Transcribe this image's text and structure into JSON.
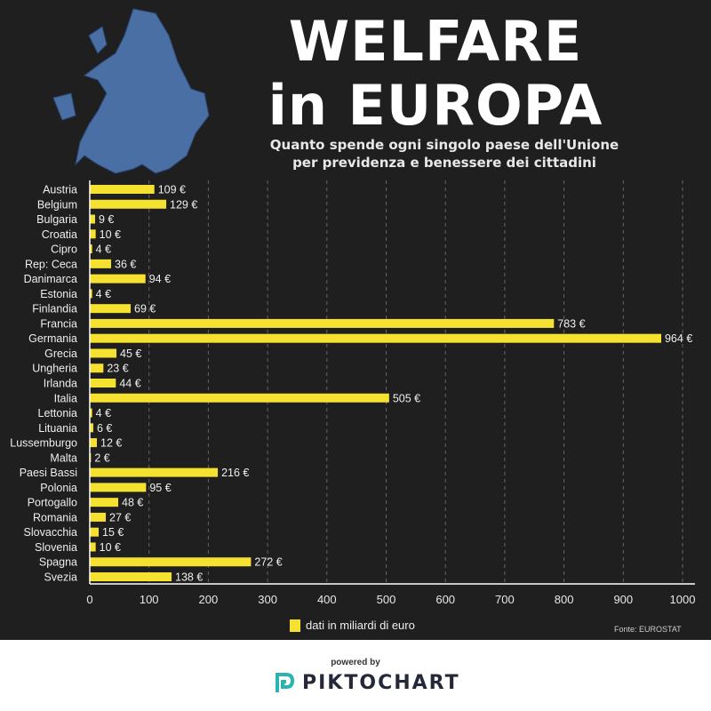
{
  "header": {
    "title_line1": "WELFARE",
    "title_line2": "in EUROPA",
    "subtitle_line1": "Quanto spende ogni singolo paese dell'Unione",
    "subtitle_line2": "per previdenza e benessere dei cittadini"
  },
  "chart_data": {
    "type": "bar",
    "orientation": "horizontal",
    "categories": [
      "Austria",
      "Belgium",
      "Bulgaria",
      "Croatia",
      "Cipro",
      "Rep: Ceca",
      "Danimarca",
      "Estonia",
      "Finlandia",
      "Francia",
      "Germania",
      "Grecia",
      "Ungheria",
      "Irlanda",
      "Italia",
      "Lettonia",
      "Lituania",
      "Lussemburgo",
      "Malta",
      "Paesi Bassi",
      "Polonia",
      "Portogallo",
      "Romania",
      "Slovacchia",
      "Slovenia",
      "Spagna",
      "Svezia"
    ],
    "values": [
      109,
      129,
      9,
      10,
      4,
      36,
      94,
      4,
      69,
      783,
      964,
      45,
      23,
      44,
      505,
      4,
      6,
      12,
      2,
      216,
      95,
      48,
      27,
      15,
      10,
      272,
      138
    ],
    "data_labels": [
      "109 €",
      "129 €",
      "9 €",
      "10 €",
      "4 €",
      "36 €",
      "94 €",
      "4 €",
      "69 €",
      "783 €",
      "964 €",
      "45 €",
      "23 €",
      "44 €",
      "505 €",
      "4 €",
      "6 €",
      "12 €",
      "2 €",
      "216 €",
      "95 €",
      "48 €",
      "27 €",
      "15 €",
      "10 €",
      "272 €",
      "138 €"
    ],
    "xlim": [
      0,
      1000
    ],
    "xticks": [
      "0",
      "100",
      "200",
      "300",
      "400",
      "500",
      "600",
      "700",
      "800",
      "900",
      "1000"
    ],
    "grid": true,
    "legend": "dati in miliardi di euro",
    "legend_position": "bottom",
    "bar_color": "#f5e130",
    "background": "#1f1f1f"
  },
  "footer": {
    "source": "Fonte: EUROSTAT",
    "powered_by": "powered by",
    "brand": "PIKTOCHART",
    "brand_color": "#2bb3b1"
  }
}
